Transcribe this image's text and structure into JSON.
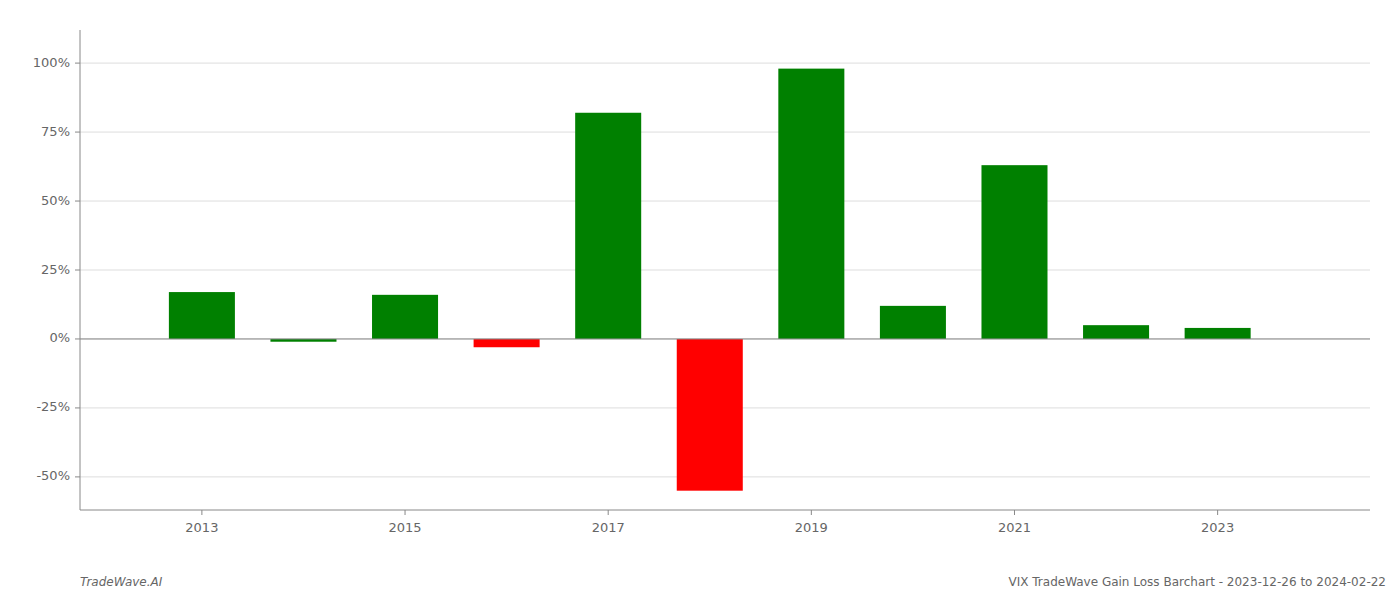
{
  "chart_data": {
    "type": "bar",
    "x": [
      2013,
      2014,
      2015,
      2016,
      2017,
      2018,
      2019,
      2020,
      2021,
      2022,
      2023
    ],
    "values": [
      0.17,
      -0.01,
      0.16,
      -0.03,
      0.82,
      -0.55,
      0.98,
      0.12,
      0.63,
      0.05,
      0.04
    ],
    "colors": [
      "#008000",
      "#008000",
      "#008000",
      "#ff0000",
      "#008000",
      "#ff0000",
      "#008000",
      "#008000",
      "#008000",
      "#008000",
      "#008000"
    ],
    "ylim": [
      -0.62,
      1.12
    ],
    "yticks": [
      {
        "value": -0.5,
        "label": "-50%"
      },
      {
        "value": -0.25,
        "label": "-25%"
      },
      {
        "value": 0.0,
        "label": "0%"
      },
      {
        "value": 0.25,
        "label": "25%"
      },
      {
        "value": 0.5,
        "label": "50%"
      },
      {
        "value": 0.75,
        "label": "75%"
      },
      {
        "value": 1.0,
        "label": "100%"
      }
    ],
    "xlim": [
      2011.8,
      2024.5
    ],
    "xticks": [
      2013,
      2015,
      2017,
      2019,
      2021,
      2023
    ],
    "grid": true,
    "annotations": [
      "TradeWave.AI",
      "VIX TradeWave Gain Loss Barchart - 2023-12-26 to 2024-02-22"
    ]
  }
}
